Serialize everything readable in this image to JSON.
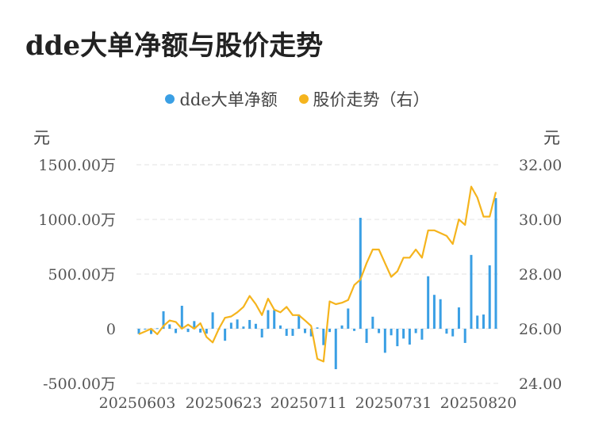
{
  "title": "dde大单净额与股价走势",
  "legend": {
    "bar_label": "dde大单净额",
    "line_label": "股价走势（右）"
  },
  "units": {
    "left": "元",
    "right": "元"
  },
  "colors": {
    "bar": "#3a9fe4",
    "line": "#f5b41d",
    "grid": "#e3e3e3"
  },
  "chart_data": {
    "type": "bar+line",
    "title": "dde大单净额与股价走势",
    "left_axis": {
      "ticks": [
        "1500.00万",
        "1000.00万",
        "500.00万",
        "0",
        "-500.00万"
      ],
      "ylim": [
        -500,
        1500
      ],
      "unit": "元"
    },
    "right_axis": {
      "ticks": [
        "32.00",
        "30.00",
        "28.00",
        "26.00",
        "24.00"
      ],
      "ylim": [
        24,
        32
      ],
      "unit": "元"
    },
    "x_tick_labels": [
      "20250603",
      "20250623",
      "20250711",
      "20250731",
      "20250820"
    ],
    "grid": true,
    "legend_position": "top-center",
    "series": [
      {
        "name": "dde大单净额",
        "kind": "bar",
        "axis": "left",
        "values": [
          -48,
          -6,
          -48,
          5,
          160,
          40,
          -40,
          210,
          -30,
          70,
          -35,
          -45,
          150,
          0,
          -110,
          55,
          85,
          20,
          80,
          45,
          -80,
          170,
          170,
          30,
          -65,
          -65,
          130,
          -40,
          -70,
          12,
          -150,
          -30,
          -370,
          30,
          185,
          -20,
          1015,
          -130,
          110,
          -40,
          -220,
          -60,
          -160,
          -90,
          -145,
          -40,
          -100,
          480,
          310,
          270,
          -45,
          -70,
          195,
          -130,
          675,
          120,
          130,
          580,
          1195
        ]
      },
      {
        "name": "股价走势（右）",
        "kind": "line",
        "axis": "right",
        "values": [
          25.8,
          25.9,
          26.0,
          25.8,
          26.1,
          26.3,
          26.25,
          26.0,
          26.15,
          26.0,
          26.2,
          25.7,
          25.5,
          26.0,
          26.4,
          26.45,
          26.6,
          26.8,
          27.2,
          26.9,
          26.5,
          27.1,
          26.7,
          26.6,
          26.8,
          26.5,
          26.5,
          26.3,
          26.1,
          24.9,
          24.8,
          27.0,
          26.9,
          26.95,
          27.05,
          27.6,
          27.8,
          28.4,
          28.9,
          28.9,
          28.4,
          27.9,
          28.1,
          28.6,
          28.6,
          28.9,
          28.6,
          29.6,
          29.6,
          29.5,
          29.4,
          29.1,
          30.0,
          29.8,
          31.2,
          30.8,
          30.1,
          30.1,
          31.0
        ]
      }
    ]
  }
}
